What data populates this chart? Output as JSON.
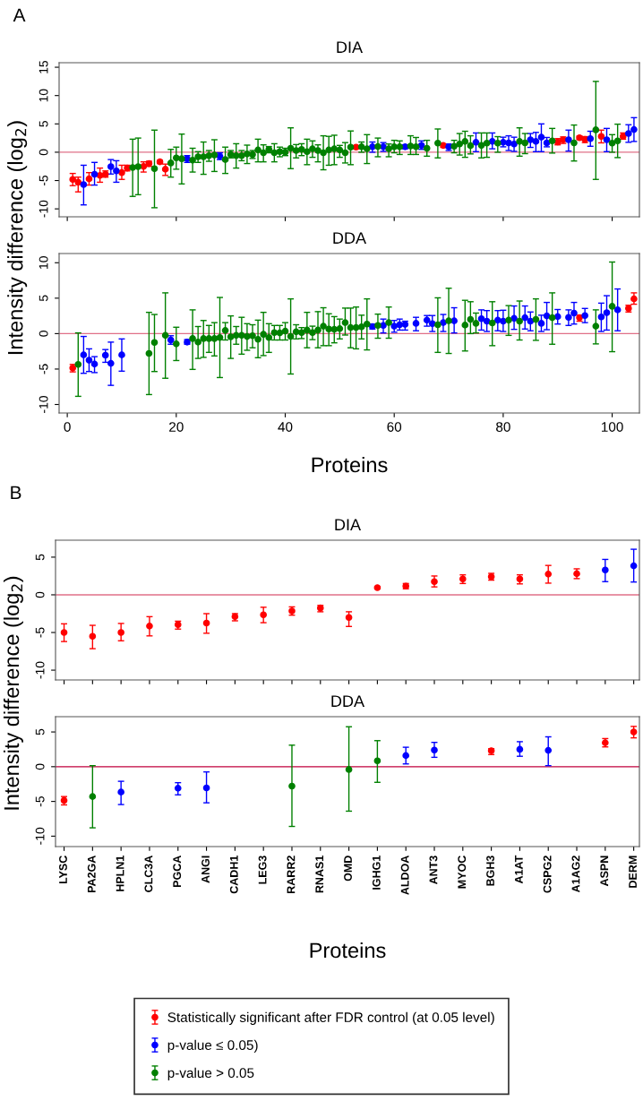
{
  "chart_data": [
    {
      "type": "scatter",
      "title": "DIA",
      "ylabel": "Intensity difference (log$_{2}$)",
      "annotations": [
        "A"
      ],
      "marker": "circle",
      "legend": "bottom",
      "tick_labels": "y",
      "xlim": [
        -1.5,
        105
      ],
      "xticks": [
        0,
        20,
        40,
        60,
        80,
        100
      ],
      "ylim": [
        -11.4,
        15.8
      ],
      "yticks": [
        -10,
        -5,
        0,
        5,
        10,
        15
      ],
      "ref_lines": [
        {
          "axis": "y",
          "value": 0,
          "color": "#e07088"
        }
      ],
      "series": [
        {
          "name": "Statistically significant after FDR control (at 0.05 level)",
          "color": "#ff0000",
          "x": [
            1,
            2,
            4,
            6,
            7,
            10,
            11,
            14,
            15,
            17,
            18,
            53,
            69,
            90,
            91,
            94,
            95,
            98,
            102
          ],
          "values": [
            -4.8,
            -5.3,
            -4.7,
            -4.1,
            -3.9,
            -3.6,
            -2.8,
            -2.5,
            -2.0,
            -1.7,
            -3.0,
            0.9,
            1.2,
            1.8,
            2.2,
            2.55,
            2.25,
            2.8,
            2.8
          ],
          "errors": [
            [
              -5.9,
              -3.75
            ],
            [
              -7.0,
              -4.4
            ],
            [
              -5.8,
              -3.6
            ],
            [
              -5.3,
              -2.8
            ],
            [
              -4.4,
              -3.3
            ],
            [
              -4.8,
              -2.3
            ],
            [
              -3.3,
              -2.3
            ],
            [
              -3.5,
              -1.7
            ],
            [
              -2.5,
              -1.6
            ],
            [
              -2.0,
              -1.4
            ],
            [
              -4.1,
              -2.1
            ],
            [
              0.6,
              1.15
            ],
            [
              0.85,
              1.45
            ],
            [
              1.3,
              2.4
            ],
            [
              1.55,
              2.7
            ],
            [
              2.25,
              2.85
            ],
            [
              1.7,
              2.75
            ],
            [
              1.65,
              3.9
            ],
            [
              2.3,
              3.4
            ]
          ]
        },
        {
          "name": "p-value ≤ 0.05)",
          "color": "#0000ff",
          "x": [
            3,
            5,
            8,
            9,
            22,
            28,
            56,
            58,
            62,
            65,
            70,
            75,
            78,
            80,
            81,
            82,
            85,
            86,
            87,
            88,
            92,
            96,
            99,
            103,
            104
          ],
          "values": [
            -5.7,
            -3.9,
            -2.55,
            -3.3,
            -1.15,
            -0.7,
            0.95,
            0.95,
            0.95,
            1.2,
            0.95,
            1.75,
            1.9,
            1.75,
            1.65,
            1.45,
            2.2,
            1.9,
            2.65,
            1.65,
            2.2,
            2.4,
            2.2,
            3.3,
            4.0
          ],
          "errors": [
            [
              -9.3,
              -2.3
            ],
            [
              -5.8,
              -1.8
            ],
            [
              -3.85,
              -1.3
            ],
            [
              -5.3,
              -1.5
            ],
            [
              -1.8,
              -0.6
            ],
            [
              -1.3,
              -0.1
            ],
            [
              0,
              1.8
            ],
            [
              0.15,
              1.7
            ],
            [
              0.6,
              1.3
            ],
            [
              0.5,
              2.0
            ],
            [
              0.3,
              1.45
            ],
            [
              0.1,
              3.4
            ],
            [
              0.6,
              3.4
            ],
            [
              0.95,
              2.65
            ],
            [
              0.3,
              2.9
            ],
            [
              0.15,
              2.65
            ],
            [
              0.85,
              3.3
            ],
            [
              0.1,
              3.5
            ],
            [
              0.1,
              5.0
            ],
            [
              0.95,
              2.6
            ],
            [
              0.2,
              3.9
            ],
            [
              1.05,
              3.7
            ],
            [
              0.1,
              4.2
            ],
            [
              1.75,
              4.85
            ],
            [
              1.9,
              6.1
            ]
          ]
        },
        {
          "name": "p-value > 0.05",
          "color": "#008000",
          "x": [
            12,
            13,
            16,
            19,
            20,
            21,
            23,
            24,
            25,
            26,
            27,
            29,
            30,
            31,
            32,
            33,
            34,
            35,
            36,
            37,
            38,
            39,
            40,
            41,
            42,
            43,
            44,
            45,
            46,
            47,
            48,
            49,
            50,
            51,
            52,
            54,
            55,
            57,
            59,
            60,
            61,
            63,
            64,
            66,
            68,
            71,
            72,
            73,
            74,
            76,
            77,
            79,
            83,
            84,
            89,
            93,
            97,
            100,
            101
          ],
          "values": [
            -2.7,
            -2.55,
            -2.9,
            -1.9,
            -1.0,
            -1.15,
            -1.4,
            -0.8,
            -0.8,
            -0.6,
            -0.5,
            -1.3,
            -0.4,
            -0.6,
            -0.6,
            -0.3,
            -0.4,
            0.4,
            -0.1,
            0.5,
            -0.1,
            0.1,
            0.0,
            0.7,
            0.3,
            0.5,
            0.1,
            0.6,
            0.3,
            -0.1,
            0.4,
            0.6,
            0.4,
            -0.1,
            0.9,
            0.95,
            0.6,
            1.0,
            0.6,
            0.95,
            0.95,
            1.1,
            0.95,
            0.7,
            1.6,
            1.05,
            1.45,
            1.9,
            1.15,
            1.2,
            1.6,
            1.6,
            1.9,
            1.65,
            2.0,
            1.65,
            3.95,
            1.6,
            2.0
          ],
          "errors": [
            [
              -7.8,
              2.3
            ],
            [
              -7.5,
              2.5
            ],
            [
              -9.8,
              3.9
            ],
            [
              -4.4,
              0.5
            ],
            [
              -3.0,
              0.9
            ],
            [
              -5.6,
              3.2
            ],
            [
              -3.5,
              0.7
            ],
            [
              -1.8,
              0.1
            ],
            [
              -3.9,
              1.8
            ],
            [
              -1.6,
              0.3
            ],
            [
              -3.4,
              2.2
            ],
            [
              -3.75,
              0.9
            ],
            [
              -1.0,
              0.3
            ],
            [
              -2.8,
              1.5
            ],
            [
              -1.5,
              0.3
            ],
            [
              -2.0,
              1.25
            ],
            [
              -1.1,
              0.3
            ],
            [
              -1.7,
              2.3
            ],
            [
              -1.7,
              1.3
            ],
            [
              -0.1,
              1.0
            ],
            [
              -1.7,
              1.5
            ],
            [
              -0.8,
              0.9
            ],
            [
              -0.6,
              0.7
            ],
            [
              -2.9,
              4.3
            ],
            [
              -1.0,
              1.35
            ],
            [
              -0.6,
              1.5
            ],
            [
              -2.2,
              2.3
            ],
            [
              -0.9,
              2.0
            ],
            [
              -1.7,
              1.3
            ],
            [
              -3.1,
              2.9
            ],
            [
              -2.3,
              2.8
            ],
            [
              -2.2,
              3.0
            ],
            [
              -0.9,
              1.2
            ],
            [
              -1.9,
              1.7
            ],
            [
              -2.2,
              3.75
            ],
            [
              0,
              1.8
            ],
            [
              -2.0,
              3.1
            ],
            [
              -0.8,
              2.5
            ],
            [
              -0.8,
              1.45
            ],
            [
              -0.1,
              2.1
            ],
            [
              -0.4,
              2.0
            ],
            [
              -0.4,
              2.9
            ],
            [
              -0.4,
              2.6
            ],
            [
              -0.7,
              2.1
            ],
            [
              -1.0,
              4.1
            ],
            [
              -0.1,
              2.1
            ],
            [
              -0.5,
              3.3
            ],
            [
              -0.9,
              3.7
            ],
            [
              -0.3,
              2.9
            ],
            [
              -1.0,
              3.4
            ],
            [
              -0.9,
              3.4
            ],
            [
              0,
              2.75
            ],
            [
              -0.7,
              4.3
            ],
            [
              -0.25,
              3.3
            ],
            [
              -0.15,
              4.2
            ],
            [
              -1.55,
              4.8
            ],
            [
              -4.8,
              12.5
            ],
            [
              0,
              3.1
            ],
            [
              -0.95,
              4.95
            ]
          ]
        }
      ]
    },
    {
      "type": "scatter",
      "title": "DDA",
      "xlabel": "Proteins",
      "marker": "circle",
      "xlim": [
        -1.5,
        105
      ],
      "xticks": [
        0,
        20,
        40,
        60,
        80,
        100
      ],
      "ylim": [
        -11.2,
        11.3
      ],
      "legend": "bottom",
      "yticks": [
        -10,
        -5,
        0,
        5,
        10
      ],
      "ref_lines": [
        {
          "axis": "y",
          "value": 0,
          "color": "#e07088"
        }
      ],
      "series": [
        {
          "name": "Statistically significant after FDR control (at 0.05 level)",
          "color": "#ff0000",
          "x": [
            1,
            94,
            103,
            104
          ],
          "values": [
            -4.85,
            2.25,
            3.55,
            4.9
          ],
          "errors": [
            [
              -5.4,
              -4.35
            ],
            [
              1.75,
              2.6
            ],
            [
              3.05,
              4.0
            ],
            [
              4.15,
              5.75
            ]
          ]
        },
        {
          "name": "p-value ≤ 0.05)",
          "color": "#0000ff",
          "x": [
            3,
            4,
            5,
            7,
            8,
            10,
            19,
            22,
            56,
            58,
            60,
            61,
            62,
            64,
            66,
            67,
            69,
            71,
            76,
            77,
            79,
            80,
            82,
            84,
            85,
            87,
            88,
            90,
            92,
            93,
            95,
            98,
            99,
            101
          ],
          "values": [
            -3.0,
            -3.75,
            -4.3,
            -3.05,
            -4.2,
            -3.0,
            -0.9,
            -1.2,
            1.0,
            1.15,
            1.05,
            1.25,
            1.3,
            1.45,
            1.9,
            1.4,
            1.55,
            1.8,
            2.1,
            1.75,
            1.9,
            1.75,
            2.15,
            2.25,
            1.75,
            1.45,
            2.5,
            2.4,
            2.3,
            2.9,
            2.55,
            2.35,
            2.95,
            3.35
          ],
          "errors": [
            [
              -5.6,
              -0.4
            ],
            [
              -5.35,
              -2.15
            ],
            [
              -5.5,
              -3.25
            ],
            [
              -4.05,
              -2.25
            ],
            [
              -7.3,
              -1.2
            ],
            [
              -5.3,
              -0.75
            ],
            [
              -1.5,
              -0.3
            ],
            [
              -1.5,
              -0.85
            ],
            [
              0.65,
              1.35
            ],
            [
              0.1,
              2.05
            ],
            [
              0.2,
              1.85
            ],
            [
              0.5,
              2.05
            ],
            [
              0.5,
              1.75
            ],
            [
              0.4,
              2.3
            ],
            [
              1.05,
              2.55
            ],
            [
              0.3,
              2.55
            ],
            [
              0.3,
              2.7
            ],
            [
              0.1,
              3.65
            ],
            [
              0.5,
              3.35
            ],
            [
              0.3,
              3.25
            ],
            [
              0.4,
              3.25
            ],
            [
              0.3,
              3.3
            ],
            [
              0.6,
              3.9
            ],
            [
              0.65,
              3.9
            ],
            [
              0.4,
              3.05
            ],
            [
              0.3,
              2.6
            ],
            [
              0.55,
              4.4
            ],
            [
              1.35,
              3.4
            ],
            [
              1.15,
              3.35
            ],
            [
              1.35,
              4.4
            ],
            [
              1.55,
              3.55
            ],
            [
              0.3,
              4.3
            ],
            [
              0.5,
              5.35
            ],
            [
              0.4,
              6.3
            ]
          ]
        },
        {
          "name": "p-value > 0.05",
          "color": "#008000",
          "x": [
            2,
            15,
            16,
            18,
            20,
            23,
            24,
            25,
            26,
            27,
            28,
            29,
            30,
            31,
            32,
            33,
            34,
            35,
            36,
            37,
            38,
            39,
            40,
            41,
            42,
            43,
            44,
            45,
            46,
            47,
            48,
            49,
            50,
            51,
            52,
            53,
            54,
            55,
            57,
            59,
            68,
            70,
            73,
            74,
            75,
            78,
            81,
            83,
            86,
            89,
            97,
            100
          ],
          "values": [
            -4.35,
            -2.8,
            -1.25,
            -0.25,
            -1.45,
            -0.7,
            -1.2,
            -0.7,
            -0.7,
            -0.7,
            -0.55,
            0.45,
            -0.45,
            -0.25,
            -0.25,
            -0.4,
            -0.3,
            -0.8,
            -0.1,
            -0.55,
            0.15,
            0.1,
            0.35,
            -0.4,
            0.25,
            0.15,
            0.5,
            0.15,
            0.5,
            1.05,
            0.65,
            0.6,
            0.7,
            1.55,
            0.85,
            0.85,
            0.95,
            1.35,
            1.15,
            1.55,
            1.25,
            1.8,
            1.2,
            2.0,
            1.45,
            1.5,
            1.9,
            1.75,
            2.0,
            2.25,
            1.05,
            3.85
          ],
          "errors": [
            [
              -8.85,
              0.1
            ],
            [
              -8.6,
              3.0
            ],
            [
              -5.35,
              2.7
            ],
            [
              -6.3,
              5.75
            ],
            [
              -3.8,
              0.9
            ],
            [
              -5.05,
              3.35
            ],
            [
              -3.5,
              1.0
            ],
            [
              -3.35,
              1.85
            ],
            [
              -2.65,
              1.15
            ],
            [
              -3.15,
              1.55
            ],
            [
              -6.2,
              5.1
            ],
            [
              -0.9,
              1.55
            ],
            [
              -3.5,
              2.5
            ],
            [
              -1.5,
              1.0
            ],
            [
              -2.9,
              2.3
            ],
            [
              -2.35,
              1.4
            ],
            [
              -2.0,
              1.25
            ],
            [
              -3.4,
              1.9
            ],
            [
              -3.1,
              3.0
            ],
            [
              -2.65,
              1.4
            ],
            [
              -0.9,
              1.15
            ],
            [
              -0.9,
              1.15
            ],
            [
              -0.9,
              1.55
            ],
            [
              -5.7,
              4.9
            ],
            [
              -0.75,
              1.25
            ],
            [
              -0.7,
              0.85
            ],
            [
              -2.0,
              3.0
            ],
            [
              -0.85,
              1.05
            ],
            [
              -2.0,
              3.1
            ],
            [
              -1.7,
              3.65
            ],
            [
              -1.7,
              2.8
            ],
            [
              -1.3,
              2.4
            ],
            [
              -0.75,
              2.05
            ],
            [
              -0.2,
              3.6
            ],
            [
              -2.0,
              3.6
            ],
            [
              -2.15,
              3.75
            ],
            [
              -0.75,
              2.6
            ],
            [
              -2.3,
              4.9
            ],
            [
              -0.65,
              2.75
            ],
            [
              -0.65,
              3.75
            ],
            [
              -2.65,
              5.05
            ],
            [
              -2.8,
              6.4
            ],
            [
              -2.45,
              4.7
            ],
            [
              0,
              4.5
            ],
            [
              0.1,
              2.9
            ],
            [
              -1.7,
              4.5
            ],
            [
              -0.25,
              3.95
            ],
            [
              -0.9,
              4.6
            ],
            [
              -0.95,
              4.9
            ],
            [
              -1.5,
              5.75
            ],
            [
              -1.45,
              3.35
            ],
            [
              -2.55,
              10.1
            ]
          ]
        }
      ]
    },
    {
      "type": "scatter",
      "title": "DIA",
      "ylabel": "Intensity difference (log$_{2}$)",
      "annotations": [
        "B"
      ],
      "marker": "circle",
      "legend": "bottom",
      "tick_labels": "y",
      "categories": [
        null,
        null,
        null,
        null,
        null,
        null,
        null,
        null,
        null,
        null,
        null,
        null,
        null,
        null,
        null,
        null,
        null,
        null,
        null,
        null,
        null
      ],
      "ylim": [
        -11.3,
        7.25
      ],
      "yticks": [
        -10,
        -5,
        0,
        5
      ],
      "ref_lines": [
        {
          "axis": "y",
          "value": 0,
          "color": "#e07088"
        }
      ],
      "series": [
        {
          "name": "Statistically significant after FDR control (at 0.05 level)",
          "color": "#ff0000",
          "values": [
            -5.0,
            -5.5,
            -5.0,
            -4.15,
            -3.95,
            -3.75,
            -2.9,
            -2.65,
            -2.15,
            -1.75,
            -3.0,
            0.95,
            1.15,
            1.75,
            2.1,
            2.4,
            2.1,
            2.75,
            2.8,
            null,
            null
          ],
          "errors": [
            [
              -6.2,
              -3.85
            ],
            [
              -7.15,
              -4.05
            ],
            [
              -6.1,
              -3.8
            ],
            [
              -5.45,
              -2.9
            ],
            [
              -4.55,
              -3.5
            ],
            [
              -5.1,
              -2.5
            ],
            [
              -3.45,
              -2.5
            ],
            [
              -3.7,
              -1.65
            ],
            [
              -2.7,
              -1.6
            ],
            [
              -2.25,
              -1.4
            ],
            [
              -4.2,
              -2.25
            ],
            [
              0.8,
              1.1
            ],
            [
              0.8,
              1.5
            ],
            [
              1.05,
              2.5
            ],
            [
              1.5,
              2.65
            ],
            [
              1.95,
              2.85
            ],
            [
              1.45,
              2.65
            ],
            [
              1.55,
              3.9
            ],
            [
              2.15,
              3.45
            ],
            null,
            null
          ]
        },
        {
          "name": "p-value ≤ 0.05)",
          "color": "#0000ff",
          "values": [
            null,
            null,
            null,
            null,
            null,
            null,
            null,
            null,
            null,
            null,
            null,
            null,
            null,
            null,
            null,
            null,
            null,
            null,
            null,
            3.3,
            3.85
          ],
          "errors": [
            null,
            null,
            null,
            null,
            null,
            null,
            null,
            null,
            null,
            null,
            null,
            null,
            null,
            null,
            null,
            null,
            null,
            null,
            null,
            [
              1.75,
              4.7
            ],
            [
              1.7,
              6.05
            ]
          ]
        }
      ]
    },
    {
      "type": "scatter",
      "title": "DDA",
      "xlabel": "Proteins",
      "marker": "circle",
      "legend": "bottom",
      "categories": [
        "LYSC",
        "PA2GA",
        "HPLN1",
        "CLC3A",
        "PGCA",
        "ANGI",
        "CADH1",
        "LEG3",
        "RARR2",
        "RNAS1",
        "OMD",
        "IGHG1",
        "ALDOA",
        "ANT3",
        "MYOC",
        "BGH3",
        "A1AT",
        "CSPG2",
        "A1AG2",
        "ASPN",
        "DERM"
      ],
      "ylim": [
        -11.5,
        7.2
      ],
      "yticks": [
        -10,
        -5,
        0,
        5
      ],
      "ref_lines": [
        {
          "axis": "y",
          "value": 0,
          "color": "#c0003c"
        }
      ],
      "series": [
        {
          "name": "Statistically significant after FDR control (at 0.05 level)",
          "color": "#ff0000",
          "values": [
            -4.85,
            null,
            null,
            null,
            null,
            null,
            null,
            null,
            null,
            null,
            null,
            null,
            null,
            null,
            null,
            2.3,
            null,
            null,
            null,
            3.45,
            5.0
          ],
          "errors": [
            [
              -5.5,
              -4.3
            ],
            null,
            null,
            null,
            null,
            null,
            null,
            null,
            null,
            null,
            null,
            null,
            null,
            null,
            null,
            [
              1.75,
              2.6
            ],
            null,
            null,
            null,
            [
              2.85,
              4.05
            ],
            [
              4.15,
              5.8
            ]
          ]
        },
        {
          "name": "p-value ≤ 0.05)",
          "color": "#0000ff",
          "values": [
            null,
            null,
            -3.65,
            null,
            -3.1,
            -3.05,
            null,
            null,
            null,
            null,
            null,
            null,
            1.6,
            2.4,
            null,
            null,
            2.5,
            2.35,
            null,
            null,
            null
          ],
          "errors": [
            null,
            null,
            [
              -5.45,
              -2.1
            ],
            null,
            [
              -4.05,
              -2.3
            ],
            [
              -5.2,
              -0.75
            ],
            null,
            null,
            null,
            null,
            null,
            null,
            [
              0.4,
              2.8
            ],
            [
              1.35,
              3.5
            ],
            null,
            null,
            [
              1.5,
              3.6
            ],
            [
              0.15,
              4.3
            ],
            null,
            null,
            null
          ]
        },
        {
          "name": "p-value > 0.05",
          "color": "#008000",
          "values": [
            null,
            -4.3,
            null,
            null,
            null,
            null,
            null,
            null,
            -2.8,
            null,
            -0.4,
            0.85,
            null,
            null,
            null,
            null,
            null,
            null,
            null,
            null,
            null
          ],
          "errors": [
            null,
            [
              -8.8,
              0.15
            ],
            null,
            null,
            null,
            null,
            null,
            null,
            [
              -8.6,
              3.1
            ],
            null,
            [
              -6.4,
              5.75
            ],
            [
              -2.25,
              3.75
            ],
            null,
            null,
            null,
            null,
            null,
            null,
            null,
            null,
            null
          ]
        }
      ]
    }
  ]
}
